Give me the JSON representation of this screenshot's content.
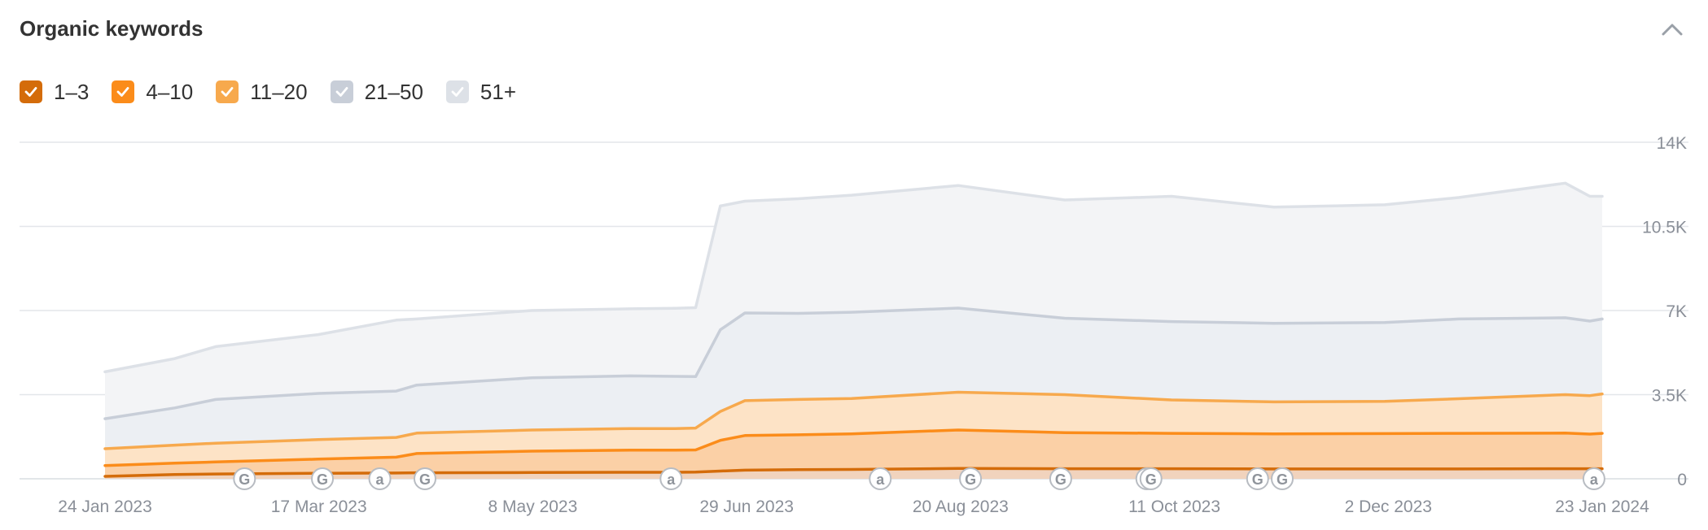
{
  "title": "Organic keywords",
  "colors": {
    "range_1_3": "#d46c0a",
    "range_4_10": "#fb8c1a",
    "range_11_20": "#f7a94d",
    "range_21_50": "#c8ced8",
    "range_51_plus": "#dde1e7",
    "grid": "#e3e6ea",
    "axis_text": "#8a8f98"
  },
  "legend": [
    {
      "label": "1–3",
      "checked": true,
      "color": "#d46c0a"
    },
    {
      "label": "4–10",
      "checked": true,
      "color": "#fb8c1a"
    },
    {
      "label": "11–20",
      "checked": true,
      "color": "#f7a94d"
    },
    {
      "label": "21–50",
      "checked": true,
      "color": "#c8ced8"
    },
    {
      "label": "51+",
      "checked": true,
      "color": "#dde1e7"
    }
  ],
  "chart_data": {
    "type": "area",
    "stacked": true,
    "x": [
      "2023-01-24",
      "2023-02-10",
      "2023-02-20",
      "2023-03-17",
      "2023-04-05",
      "2023-04-10",
      "2023-05-08",
      "2023-06-01",
      "2023-06-12",
      "2023-06-17",
      "2023-06-23",
      "2023-06-29",
      "2023-07-12",
      "2023-07-25",
      "2023-08-20",
      "2023-09-15",
      "2023-10-11",
      "2023-11-05",
      "2023-12-02",
      "2023-12-20",
      "2024-01-15",
      "2024-01-21",
      "2024-01-24"
    ],
    "series": [
      {
        "name": "1–3",
        "values": [
          100,
          180,
          200,
          230,
          240,
          250,
          260,
          270,
          270,
          280,
          320,
          360,
          380,
          390,
          430,
          420,
          420,
          410,
          410,
          410,
          420,
          420,
          420
        ]
      },
      {
        "name": "4–10",
        "values": [
          550,
          650,
          700,
          820,
          900,
          1050,
          1150,
          1190,
          1190,
          1200,
          1600,
          1800,
          1830,
          1870,
          2030,
          1920,
          1890,
          1870,
          1880,
          1890,
          1900,
          1860,
          1890
        ]
      },
      {
        "name": "11–20",
        "values": [
          1250,
          1400,
          1480,
          1630,
          1720,
          1900,
          2030,
          2090,
          2090,
          2110,
          2800,
          3250,
          3300,
          3340,
          3600,
          3500,
          3280,
          3200,
          3220,
          3330,
          3500,
          3460,
          3530
        ]
      },
      {
        "name": "21–50",
        "values": [
          2500,
          2950,
          3300,
          3550,
          3650,
          3900,
          4200,
          4280,
          4260,
          4250,
          6200,
          6900,
          6880,
          6930,
          7100,
          6680,
          6540,
          6470,
          6500,
          6650,
          6700,
          6560,
          6650
        ]
      },
      {
        "name": "51+",
        "values": [
          4450,
          5000,
          5500,
          6000,
          6600,
          6650,
          7000,
          7070,
          7090,
          7120,
          11350,
          11550,
          11650,
          11800,
          12200,
          11600,
          11750,
          11300,
          11400,
          11700,
          12300,
          11750,
          11750
        ]
      }
    ],
    "ylim": [
      0,
      14000
    ],
    "yticks": [
      0,
      3500,
      7000,
      10500,
      14000
    ],
    "ytick_labels": [
      "0",
      "3.5K",
      "7K",
      "10.5K",
      "14K"
    ],
    "xtick_labels": [
      "24 Jan 2023",
      "17 Mar 2023",
      "8 May 2023",
      "29 Jun 2023",
      "20 Aug 2023",
      "11 Oct 2023",
      "2 Dec 2023",
      "23 Jan 2024"
    ],
    "grid": true,
    "markers": [
      {
        "date": "2023-02-27",
        "label": "G"
      },
      {
        "date": "2023-03-18",
        "label": "G"
      },
      {
        "date": "2023-04-01",
        "label": "a"
      },
      {
        "date": "2023-04-12",
        "label": "G"
      },
      {
        "date": "2023-06-11",
        "label": "a"
      },
      {
        "date": "2023-08-01",
        "label": "a"
      },
      {
        "date": "2023-08-23",
        "label": "G"
      },
      {
        "date": "2023-09-14",
        "label": "G"
      },
      {
        "date": "2023-10-05",
        "label": "G"
      },
      {
        "date": "2023-10-06",
        "label": "G"
      },
      {
        "date": "2023-11-01",
        "label": "G"
      },
      {
        "date": "2023-11-07",
        "label": "G"
      },
      {
        "date": "2024-01-22",
        "label": "a"
      }
    ]
  }
}
